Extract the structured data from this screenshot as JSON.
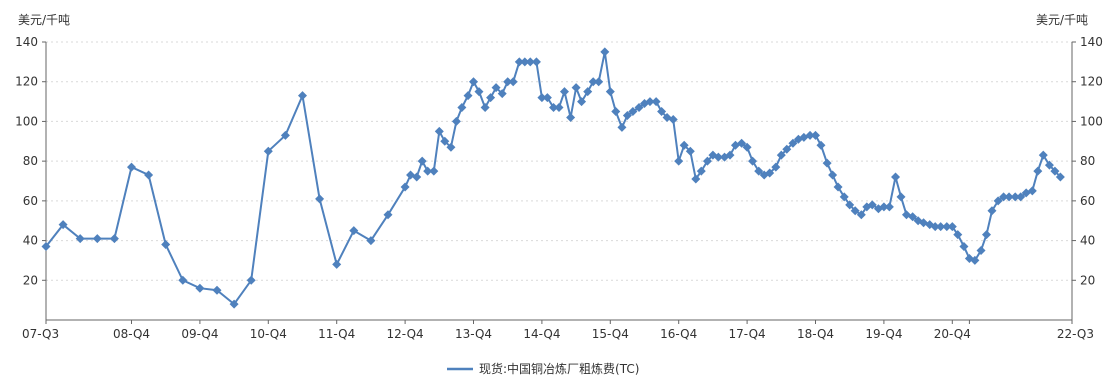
{
  "chart_data": {
    "type": "line",
    "y_unit_left": "美元/千吨",
    "y_unit_right": "美元/千吨",
    "ylim": [
      0,
      140
    ],
    "yticks": [
      20,
      40,
      60,
      80,
      100,
      120,
      140
    ],
    "grid": "horizontal dashed",
    "legend_position": "bottom-center",
    "x_ticks": [
      "07-Q3",
      "08-Q4",
      "09-Q4",
      "10-Q4",
      "11-Q4",
      "12-Q4",
      "13-Q4",
      "14-Q4",
      "15-Q4",
      "16-Q4",
      "17-Q4",
      "18-Q4",
      "19-Q4",
      "20-Q4",
      "22-Q3"
    ],
    "series": [
      {
        "name": "现货:中国铜冶炼厂粗炼费(TC)",
        "color": "#4f81bd",
        "marker": "diamond",
        "points": [
          [
            2007.5,
            37
          ],
          [
            2007.75,
            48
          ],
          [
            2008.0,
            41
          ],
          [
            2008.25,
            41
          ],
          [
            2008.5,
            41
          ],
          [
            2008.75,
            77
          ],
          [
            2009.0,
            73
          ],
          [
            2009.25,
            38
          ],
          [
            2009.5,
            20
          ],
          [
            2009.75,
            16
          ],
          [
            2010.0,
            15
          ],
          [
            2010.25,
            8
          ],
          [
            2010.5,
            20
          ],
          [
            2010.75,
            85
          ],
          [
            2011.0,
            93
          ],
          [
            2011.25,
            113
          ],
          [
            2011.5,
            61
          ],
          [
            2011.75,
            28
          ],
          [
            2012.0,
            45
          ],
          [
            2012.25,
            40
          ],
          [
            2012.5,
            53
          ],
          [
            2012.75,
            67
          ],
          [
            2012.83,
            73
          ],
          [
            2012.92,
            72
          ],
          [
            2013.0,
            80
          ],
          [
            2013.08,
            75
          ],
          [
            2013.17,
            75
          ],
          [
            2013.25,
            95
          ],
          [
            2013.33,
            90
          ],
          [
            2013.42,
            87
          ],
          [
            2013.5,
            100
          ],
          [
            2013.58,
            107
          ],
          [
            2013.67,
            113
          ],
          [
            2013.75,
            120
          ],
          [
            2013.83,
            115
          ],
          [
            2013.92,
            107
          ],
          [
            2014.0,
            112
          ],
          [
            2014.08,
            117
          ],
          [
            2014.17,
            114
          ],
          [
            2014.25,
            120
          ],
          [
            2014.33,
            120
          ],
          [
            2014.42,
            130
          ],
          [
            2014.5,
            130
          ],
          [
            2014.58,
            130
          ],
          [
            2014.67,
            130
          ],
          [
            2014.75,
            112
          ],
          [
            2014.83,
            112
          ],
          [
            2014.92,
            107
          ],
          [
            2015.0,
            107
          ],
          [
            2015.08,
            115
          ],
          [
            2015.17,
            102
          ],
          [
            2015.25,
            117
          ],
          [
            2015.33,
            110
          ],
          [
            2015.42,
            115
          ],
          [
            2015.5,
            120
          ],
          [
            2015.58,
            120
          ],
          [
            2015.67,
            135
          ],
          [
            2015.75,
            115
          ],
          [
            2015.83,
            105
          ],
          [
            2015.92,
            97
          ],
          [
            2016.0,
            103
          ],
          [
            2016.08,
            105
          ],
          [
            2016.17,
            107
          ],
          [
            2016.25,
            109
          ],
          [
            2016.33,
            110
          ],
          [
            2016.42,
            110
          ],
          [
            2016.5,
            105
          ],
          [
            2016.58,
            102
          ],
          [
            2016.67,
            101
          ],
          [
            2016.75,
            80
          ],
          [
            2016.83,
            88
          ],
          [
            2016.92,
            85
          ],
          [
            2017.0,
            71
          ],
          [
            2017.08,
            75
          ],
          [
            2017.17,
            80
          ],
          [
            2017.25,
            83
          ],
          [
            2017.33,
            82
          ],
          [
            2017.42,
            82
          ],
          [
            2017.5,
            83
          ],
          [
            2017.58,
            88
          ],
          [
            2017.67,
            89
          ],
          [
            2017.75,
            87
          ],
          [
            2017.83,
            80
          ],
          [
            2017.92,
            75
          ],
          [
            2018.0,
            73
          ],
          [
            2018.08,
            74
          ],
          [
            2018.17,
            77
          ],
          [
            2018.25,
            83
          ],
          [
            2018.33,
            86
          ],
          [
            2018.42,
            89
          ],
          [
            2018.5,
            91
          ],
          [
            2018.58,
            92
          ],
          [
            2018.67,
            93
          ],
          [
            2018.75,
            93
          ],
          [
            2018.83,
            88
          ],
          [
            2018.92,
            79
          ],
          [
            2019.0,
            73
          ],
          [
            2019.08,
            67
          ],
          [
            2019.17,
            62
          ],
          [
            2019.25,
            58
          ],
          [
            2019.33,
            55
          ],
          [
            2019.42,
            53
          ],
          [
            2019.5,
            57
          ],
          [
            2019.58,
            58
          ],
          [
            2019.67,
            56
          ],
          [
            2019.75,
            57
          ],
          [
            2019.83,
            57
          ],
          [
            2019.92,
            72
          ],
          [
            2020.0,
            62
          ],
          [
            2020.08,
            53
          ],
          [
            2020.17,
            52
          ],
          [
            2020.25,
            50
          ],
          [
            2020.33,
            49
          ],
          [
            2020.42,
            48
          ],
          [
            2020.5,
            47
          ],
          [
            2020.58,
            47
          ],
          [
            2020.67,
            47
          ],
          [
            2020.75,
            47
          ],
          [
            2020.83,
            43
          ],
          [
            2020.92,
            37
          ],
          [
            2021.0,
            31
          ],
          [
            2021.08,
            30
          ],
          [
            2021.17,
            35
          ],
          [
            2021.25,
            43
          ],
          [
            2021.33,
            55
          ],
          [
            2021.42,
            60
          ],
          [
            2021.5,
            62
          ],
          [
            2021.58,
            62
          ],
          [
            2021.67,
            62
          ],
          [
            2021.75,
            62
          ],
          [
            2021.83,
            64
          ],
          [
            2021.92,
            65
          ],
          [
            2022.0,
            75
          ],
          [
            2022.08,
            83
          ],
          [
            2022.17,
            78
          ],
          [
            2022.25,
            75
          ],
          [
            2022.33,
            72
          ]
        ]
      }
    ]
  }
}
